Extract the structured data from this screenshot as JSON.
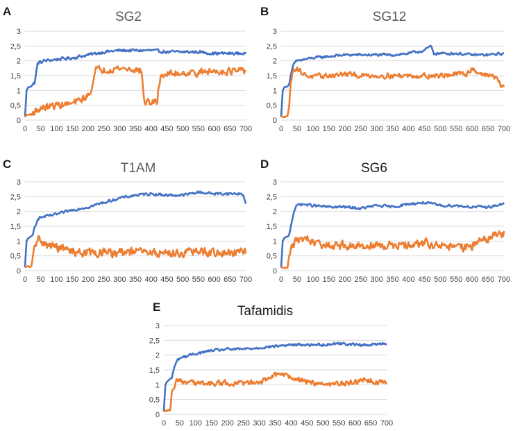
{
  "figure": {
    "background": "#ffffff",
    "series_colors": {
      "blue": "#4472c4",
      "orange": "#ed7d31"
    }
  },
  "chart_data": [
    {
      "panel": "A",
      "title": "SG2",
      "type": "line",
      "xlabel": "",
      "ylabel": "",
      "xlim": [
        0,
        700
      ],
      "ylim": [
        0,
        3
      ],
      "x_ticks": [
        "0",
        "50",
        "100",
        "150",
        "200",
        "250",
        "300",
        "350",
        "400",
        "450",
        "500",
        "550",
        "600",
        "650",
        "700"
      ],
      "y_ticks": [
        "0",
        "0,5",
        "1",
        "1,5",
        "2",
        "2,5",
        "3"
      ],
      "grid": true,
      "series": [
        {
          "name": "blue",
          "color": "#4472c4",
          "noise": 0.07,
          "x": [
            0,
            5,
            10,
            20,
            25,
            30,
            35,
            40,
            45,
            50,
            60,
            100,
            150,
            200,
            250,
            300,
            350,
            400,
            450,
            500,
            550,
            600,
            650,
            700
          ],
          "y": [
            0.1,
            1.0,
            1.1,
            1.15,
            1.2,
            1.25,
            1.55,
            1.9,
            1.95,
            1.95,
            2.0,
            2.05,
            2.1,
            2.2,
            2.3,
            2.35,
            2.35,
            2.35,
            2.3,
            2.3,
            2.3,
            2.25,
            2.25,
            2.25
          ]
        },
        {
          "name": "orange",
          "color": "#ed7d31",
          "noise": 0.16,
          "x": [
            0,
            20,
            50,
            100,
            150,
            180,
            205,
            215,
            225,
            250,
            300,
            350,
            370,
            375,
            380,
            420,
            425,
            430,
            450,
            500,
            550,
            600,
            650,
            700
          ],
          "y": [
            0.15,
            0.2,
            0.4,
            0.5,
            0.55,
            0.7,
            0.85,
            1.3,
            1.7,
            1.7,
            1.75,
            1.7,
            1.65,
            0.9,
            0.6,
            0.6,
            1.2,
            1.5,
            1.55,
            1.6,
            1.6,
            1.65,
            1.65,
            1.65
          ]
        }
      ]
    },
    {
      "panel": "B",
      "title": "SG12",
      "type": "line",
      "xlabel": "",
      "ylabel": "",
      "xlim": [
        0,
        700
      ],
      "ylim": [
        0,
        3
      ],
      "x_ticks": [
        "0",
        "50",
        "100",
        "150",
        "200",
        "250",
        "300",
        "350",
        "400",
        "450",
        "500",
        "550",
        "600",
        "650",
        "700"
      ],
      "y_ticks": [
        "0",
        "0,5",
        "1",
        "1,5",
        "2",
        "2,5",
        "3"
      ],
      "grid": true,
      "series": [
        {
          "name": "blue",
          "color": "#4472c4",
          "noise": 0.06,
          "x": [
            0,
            5,
            10,
            20,
            25,
            30,
            40,
            50,
            100,
            150,
            200,
            250,
            300,
            350,
            400,
            450,
            470,
            480,
            500,
            550,
            600,
            650,
            700
          ],
          "y": [
            0.1,
            1.0,
            1.1,
            1.15,
            1.2,
            1.5,
            1.9,
            2.0,
            2.1,
            2.15,
            2.2,
            2.2,
            2.2,
            2.2,
            2.25,
            2.35,
            2.5,
            2.25,
            2.25,
            2.25,
            2.2,
            2.2,
            2.25
          ]
        },
        {
          "name": "orange",
          "color": "#ed7d31",
          "noise": 0.12,
          "x": [
            0,
            20,
            25,
            30,
            40,
            50,
            70,
            100,
            150,
            200,
            250,
            300,
            350,
            400,
            450,
            500,
            550,
            580,
            600,
            620,
            650,
            680,
            690,
            700
          ],
          "y": [
            0.1,
            0.15,
            0.4,
            1.3,
            1.75,
            1.75,
            1.55,
            1.45,
            1.5,
            1.55,
            1.5,
            1.5,
            1.5,
            1.5,
            1.5,
            1.5,
            1.55,
            1.55,
            1.75,
            1.6,
            1.5,
            1.45,
            1.1,
            1.1
          ]
        }
      ]
    },
    {
      "panel": "C",
      "title": "T1AM",
      "type": "line",
      "xlabel": "",
      "ylabel": "",
      "xlim": [
        0,
        700
      ],
      "ylim": [
        0,
        3
      ],
      "x_ticks": [
        "0",
        "50",
        "100",
        "150",
        "200",
        "250",
        "300",
        "350",
        "400",
        "450",
        "500",
        "550",
        "600",
        "650",
        "700"
      ],
      "y_ticks": [
        "0",
        "0,5",
        "1",
        "1,5",
        "2",
        "2,5",
        "3"
      ],
      "grid": true,
      "series": [
        {
          "name": "blue",
          "color": "#4472c4",
          "noise": 0.06,
          "x": [
            0,
            5,
            10,
            20,
            25,
            30,
            40,
            50,
            100,
            150,
            200,
            250,
            300,
            350,
            400,
            450,
            500,
            550,
            600,
            650,
            690,
            700
          ],
          "y": [
            0.1,
            1.0,
            1.1,
            1.15,
            1.2,
            1.45,
            1.75,
            1.8,
            1.9,
            2.05,
            2.15,
            2.3,
            2.45,
            2.55,
            2.6,
            2.55,
            2.55,
            2.65,
            2.6,
            2.6,
            2.6,
            2.25
          ]
        },
        {
          "name": "orange",
          "color": "#ed7d31",
          "noise": 0.2,
          "x": [
            0,
            20,
            30,
            40,
            45,
            50,
            100,
            150,
            200,
            250,
            300,
            350,
            400,
            450,
            500,
            550,
            600,
            650,
            700
          ],
          "y": [
            0.1,
            0.15,
            0.7,
            1.1,
            1.3,
            0.9,
            0.8,
            0.65,
            0.6,
            0.6,
            0.6,
            0.65,
            0.6,
            0.6,
            0.6,
            0.65,
            0.6,
            0.6,
            0.6
          ]
        }
      ]
    },
    {
      "panel": "D",
      "title": "SG6",
      "type": "line",
      "xlabel": "",
      "ylabel": "",
      "xlim": [
        0,
        700
      ],
      "ylim": [
        0,
        3
      ],
      "x_ticks": [
        "0",
        "50",
        "100",
        "150",
        "200",
        "250",
        "300",
        "350",
        "400",
        "450",
        "500",
        "550",
        "600",
        "650",
        "700"
      ],
      "y_ticks": [
        "0",
        "0,5",
        "1",
        "1,5",
        "2",
        "2,5",
        "3"
      ],
      "grid": true,
      "series": [
        {
          "name": "blue",
          "color": "#4472c4",
          "noise": 0.06,
          "x": [
            0,
            5,
            10,
            20,
            25,
            30,
            40,
            50,
            60,
            100,
            150,
            200,
            250,
            300,
            350,
            400,
            450,
            500,
            550,
            600,
            650,
            700
          ],
          "y": [
            0.1,
            1.0,
            1.1,
            1.15,
            1.2,
            1.5,
            2.0,
            2.2,
            2.25,
            2.2,
            2.15,
            2.15,
            2.1,
            2.2,
            2.15,
            2.25,
            2.3,
            2.2,
            2.2,
            2.15,
            2.15,
            2.25
          ]
        },
        {
          "name": "orange",
          "color": "#ed7d31",
          "noise": 0.2,
          "x": [
            0,
            20,
            30,
            40,
            50,
            80,
            100,
            150,
            200,
            250,
            300,
            350,
            400,
            450,
            500,
            550,
            600,
            650,
            700
          ],
          "y": [
            0.1,
            0.15,
            0.7,
            0.9,
            1.0,
            1.1,
            0.9,
            0.85,
            0.85,
            0.85,
            0.85,
            0.85,
            0.85,
            0.95,
            0.85,
            0.75,
            0.85,
            1.1,
            1.25
          ]
        }
      ]
    },
    {
      "panel": "E",
      "title": "Tafamidis",
      "type": "line",
      "xlabel": "",
      "ylabel": "",
      "xlim": [
        0,
        700
      ],
      "ylim": [
        0,
        3
      ],
      "x_ticks": [
        "0",
        "50",
        "100",
        "150",
        "200",
        "250",
        "300",
        "350",
        "400",
        "450",
        "500",
        "550",
        "600",
        "650",
        "700"
      ],
      "y_ticks": [
        "0",
        "0,5",
        "1",
        "1,5",
        "2",
        "2,5",
        "3"
      ],
      "grid": true,
      "series": [
        {
          "name": "blue",
          "color": "#4472c4",
          "noise": 0.06,
          "x": [
            0,
            5,
            10,
            20,
            25,
            30,
            40,
            50,
            100,
            150,
            200,
            250,
            300,
            350,
            400,
            450,
            500,
            550,
            600,
            650,
            700
          ],
          "y": [
            0.1,
            1.0,
            1.1,
            1.2,
            1.2,
            1.5,
            1.8,
            1.9,
            2.05,
            2.15,
            2.2,
            2.2,
            2.25,
            2.3,
            2.35,
            2.35,
            2.35,
            2.4,
            2.35,
            2.35,
            2.4
          ]
        },
        {
          "name": "orange",
          "color": "#ed7d31",
          "noise": 0.13,
          "x": [
            0,
            20,
            25,
            30,
            40,
            50,
            100,
            150,
            200,
            250,
            300,
            340,
            360,
            400,
            450,
            500,
            550,
            600,
            650,
            700
          ],
          "y": [
            0.1,
            0.15,
            0.7,
            0.85,
            1.1,
            1.1,
            1.05,
            1.05,
            1.05,
            1.05,
            1.1,
            1.25,
            1.35,
            1.25,
            1.1,
            1.0,
            1.05,
            1.1,
            1.15,
            1.05
          ]
        }
      ]
    }
  ]
}
